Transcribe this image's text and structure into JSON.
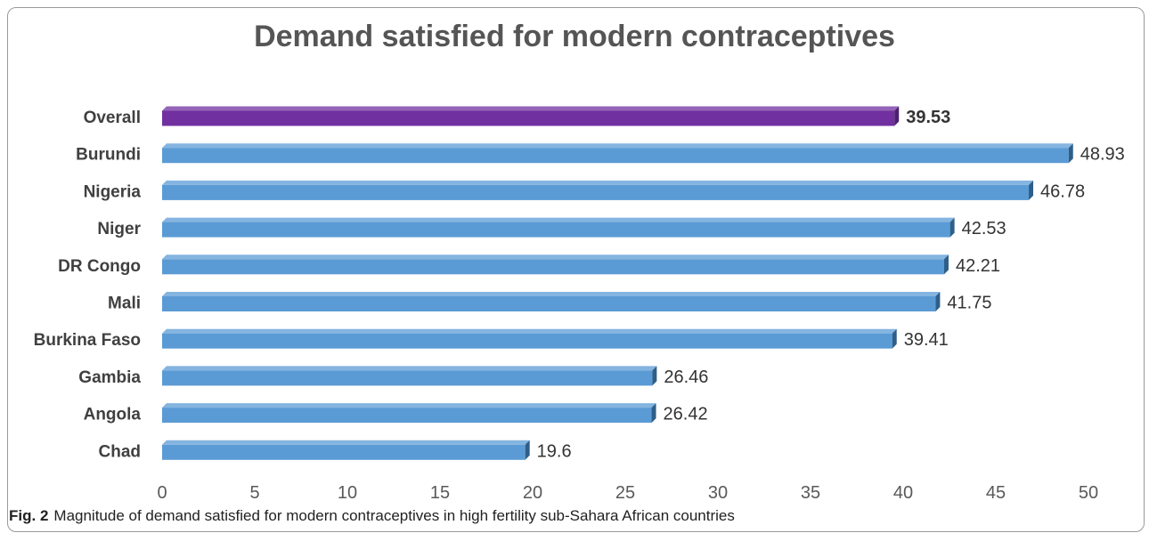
{
  "chart_data": {
    "type": "bar",
    "orientation": "horizontal",
    "title": "Demand satisfied for modern contraceptives",
    "xlabel": "",
    "ylabel": "",
    "categories": [
      "Overall",
      "Burundi",
      "Nigeria",
      "Niger",
      "DR Congo",
      "Mali",
      "Burkina Faso",
      "Gambia",
      "Angola",
      "Chad"
    ],
    "values": [
      39.53,
      48.93,
      46.78,
      42.53,
      42.21,
      41.75,
      39.41,
      26.46,
      26.42,
      19.6
    ],
    "value_labels": [
      "39.53",
      "48.93",
      "46.78",
      "42.53",
      "42.21",
      "41.75",
      "39.41",
      "26.46",
      "26.42",
      "19.6"
    ],
    "highlight_index": 0,
    "xlim": [
      0,
      50
    ],
    "x_ticks": [
      "0",
      "5",
      "10",
      "15",
      "20",
      "25",
      "30",
      "35",
      "40",
      "45",
      "50"
    ],
    "grid": false,
    "legend": "none",
    "colors": {
      "highlight": "#7030a0",
      "highlight_side": "#4b1f6f",
      "bar": "#5b9bd5",
      "bar_side": "#2e5f8a"
    }
  },
  "caption": {
    "label": "Fig. 2",
    "text": "Magnitude of demand satisfied for modern contraceptives in high fertility sub-Sahara African countries"
  }
}
